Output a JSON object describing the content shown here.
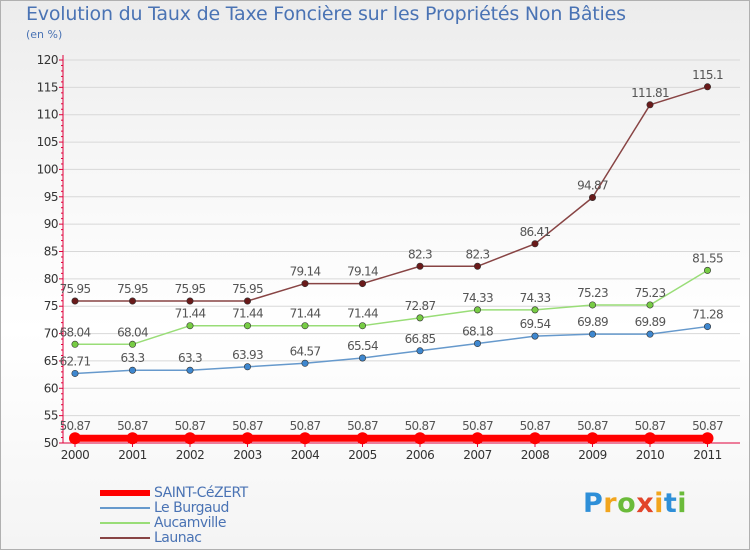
{
  "title": "Evolution du Taux de Taxe Foncière sur les Propriétés Non Bâties",
  "unit_label": "(en %)",
  "brand": {
    "text": "Proxiti",
    "letters": [
      "P",
      "r",
      "o",
      "x",
      "i",
      "t",
      "i"
    ]
  },
  "colors": {
    "title": "#4a73b4",
    "axis": "#e0003b",
    "grid": "#d8d8d8",
    "tick_text": "#333333",
    "value_text": "#555555"
  },
  "chart_data": {
    "type": "line",
    "title": "Evolution du Taux de Taxe Foncière sur les Propriétés Non Bâties",
    "ylabel": "(en %)",
    "xlabel": "",
    "x": [
      "2000",
      "2001",
      "2002",
      "2003",
      "2004",
      "2005",
      "2006",
      "2007",
      "2008",
      "2009",
      "2010",
      "2011"
    ],
    "ylim": [
      50,
      120
    ],
    "yticks": [
      50,
      55,
      60,
      65,
      70,
      75,
      80,
      85,
      90,
      95,
      100,
      105,
      110,
      115,
      120
    ],
    "grid": true,
    "legend_position": "bottom-left",
    "series": [
      {
        "name": "SAINT-CéZERT",
        "color": "#ff0000",
        "marker_color": "#ff0000",
        "values": [
          50.87,
          50.87,
          50.87,
          50.87,
          50.87,
          50.87,
          50.87,
          50.87,
          50.87,
          50.87,
          50.87,
          50.87
        ],
        "labels": [
          "50.87",
          "50.87",
          "50.87",
          "50.87",
          "50.87",
          "50.87",
          "50.87",
          "50.87",
          "50.87",
          "50.87",
          "50.87",
          "50.87"
        ]
      },
      {
        "name": "Le Burgaud",
        "color": "#6699cc",
        "marker_color": "#3e87cf",
        "values": [
          62.71,
          63.3,
          63.3,
          63.93,
          64.57,
          65.54,
          66.85,
          68.18,
          69.54,
          69.89,
          69.89,
          71.28
        ],
        "labels": [
          "62.71",
          "63.3",
          "63.3",
          "63.93",
          "64.57",
          "65.54",
          "66.85",
          "68.18",
          "69.54",
          "69.89",
          "69.89",
          "71.28"
        ]
      },
      {
        "name": "Aucamville",
        "color": "#99dd77",
        "marker_color": "#77cc44",
        "values": [
          68.04,
          68.04,
          71.44,
          71.44,
          71.44,
          71.44,
          72.87,
          74.33,
          74.33,
          75.23,
          75.23,
          81.55
        ],
        "labels": [
          "68.04",
          "68.04",
          "71.44",
          "71.44",
          "71.44",
          "71.44",
          "72.87",
          "74.33",
          "74.33",
          "75.23",
          "75.23",
          "81.55"
        ]
      },
      {
        "name": "Launac",
        "color": "#884444",
        "marker_color": "#6a1a1a",
        "values": [
          75.95,
          75.95,
          75.95,
          75.95,
          79.14,
          79.14,
          82.3,
          82.3,
          86.41,
          94.87,
          111.81,
          115.1
        ],
        "labels": [
          "75.95",
          "75.95",
          "75.95",
          "75.95",
          "79.14",
          "79.14",
          "82.3",
          "82.3",
          "86.41",
          "94.87",
          "111.81",
          "115.1"
        ]
      }
    ]
  }
}
